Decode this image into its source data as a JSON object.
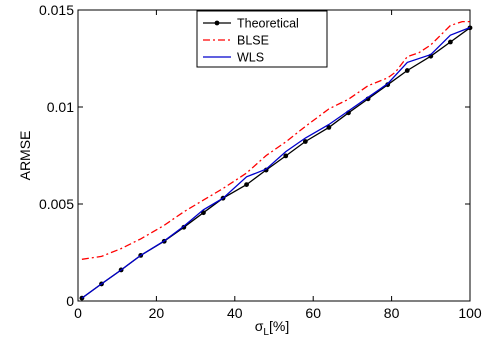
{
  "chart_data": {
    "type": "line",
    "title": "",
    "xlabel": "σ",
    "xlabel_subscript": "L",
    "xlabel_suffix": "[%]",
    "ylabel": "ARMSE",
    "xlim": [
      0,
      100
    ],
    "ylim": [
      0,
      0.015
    ],
    "xticks": [
      0,
      20,
      40,
      60,
      80,
      100
    ],
    "xtick_labels": [
      "0",
      "20",
      "40",
      "60",
      "80",
      "100"
    ],
    "yticks": [
      0,
      0.005,
      0.01,
      0.015
    ],
    "ytick_labels": [
      "0",
      "0.005",
      "0.01",
      "0.015"
    ],
    "grid": false,
    "legend_placement": "top-center",
    "series": [
      {
        "name": "Theoretical",
        "color": "#000000",
        "style": "solid-dot",
        "x": [
          1,
          6,
          11,
          16,
          22,
          27,
          32,
          37,
          43,
          48,
          53,
          58,
          64,
          69,
          74,
          79,
          84,
          90,
          95,
          100
        ],
        "y": [
          0.00015,
          0.00088,
          0.0016,
          0.00235,
          0.00308,
          0.0038,
          0.00455,
          0.0053,
          0.006,
          0.00675,
          0.00748,
          0.00822,
          0.00895,
          0.0097,
          0.01042,
          0.01115,
          0.01188,
          0.01262,
          0.01335,
          0.01408
        ]
      },
      {
        "name": "BLSE",
        "color": "#ff0000",
        "style": "dash-dot",
        "x": [
          1,
          6,
          11,
          16,
          22,
          27,
          32,
          37,
          43,
          48,
          53,
          58,
          64,
          69,
          74,
          79,
          81,
          84,
          87,
          90,
          95,
          98,
          100
        ],
        "y": [
          0.00215,
          0.0023,
          0.0027,
          0.0032,
          0.0039,
          0.0046,
          0.0052,
          0.0058,
          0.0066,
          0.0075,
          0.0082,
          0.009,
          0.0099,
          0.0104,
          0.0111,
          0.0115,
          0.0118,
          0.0126,
          0.0128,
          0.0132,
          0.0142,
          0.0144,
          0.0144
        ]
      },
      {
        "name": "WLS",
        "color": "#0000cc",
        "style": "solid",
        "x": [
          1,
          6,
          11,
          16,
          22,
          27,
          32,
          37,
          43,
          48,
          53,
          58,
          64,
          69,
          74,
          79,
          84,
          90,
          95,
          100
        ],
        "y": [
          0.00015,
          0.00088,
          0.0016,
          0.00235,
          0.0031,
          0.00385,
          0.0047,
          0.0053,
          0.0064,
          0.0068,
          0.0077,
          0.0084,
          0.0091,
          0.0098,
          0.0105,
          0.0112,
          0.0123,
          0.0127,
          0.0137,
          0.0141
        ]
      }
    ]
  }
}
